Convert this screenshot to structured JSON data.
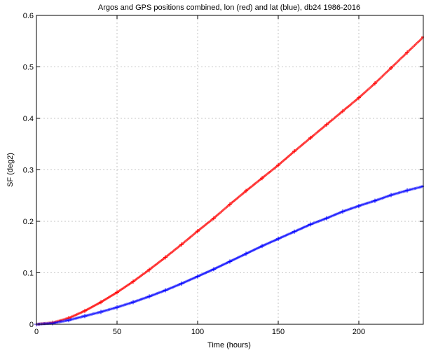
{
  "chart_data": {
    "type": "scatter",
    "title": "Argos and GPS positions combined, lon (red) and lat (blue), db24 1986-2016",
    "xlabel": "Time (hours)",
    "ylabel": "SF (deg2)",
    "xlim": [
      0,
      240
    ],
    "ylim": [
      0,
      0.6
    ],
    "xticks": [
      "0",
      "50",
      "100",
      "150",
      "200"
    ],
    "yticks": [
      "0",
      "0.1",
      "0.2",
      "0.3",
      "0.4",
      "0.5",
      "0.6"
    ],
    "grid": true,
    "marker": "+",
    "series": [
      {
        "color": "#ff0000",
        "x": [
          0,
          10,
          20,
          30,
          40,
          50,
          60,
          70,
          80,
          90,
          100,
          110,
          120,
          130,
          140,
          150,
          160,
          170,
          180,
          190,
          200,
          210,
          220,
          230,
          240
        ],
        "y": [
          0.0,
          0.003,
          0.012,
          0.026,
          0.043,
          0.062,
          0.083,
          0.106,
          0.13,
          0.155,
          0.181,
          0.206,
          0.233,
          0.259,
          0.284,
          0.309,
          0.336,
          0.362,
          0.388,
          0.414,
          0.44,
          0.468,
          0.498,
          0.528,
          0.558
        ]
      },
      {
        "color": "#0000ff",
        "x": [
          0,
          10,
          20,
          30,
          40,
          50,
          60,
          70,
          80,
          90,
          100,
          110,
          120,
          130,
          140,
          150,
          160,
          170,
          180,
          190,
          200,
          210,
          220,
          230,
          240
        ],
        "y": [
          0.0,
          0.002,
          0.008,
          0.016,
          0.024,
          0.033,
          0.043,
          0.054,
          0.066,
          0.079,
          0.093,
          0.107,
          0.122,
          0.137,
          0.152,
          0.166,
          0.18,
          0.194,
          0.206,
          0.219,
          0.23,
          0.24,
          0.251,
          0.26,
          0.268
        ]
      }
    ]
  }
}
